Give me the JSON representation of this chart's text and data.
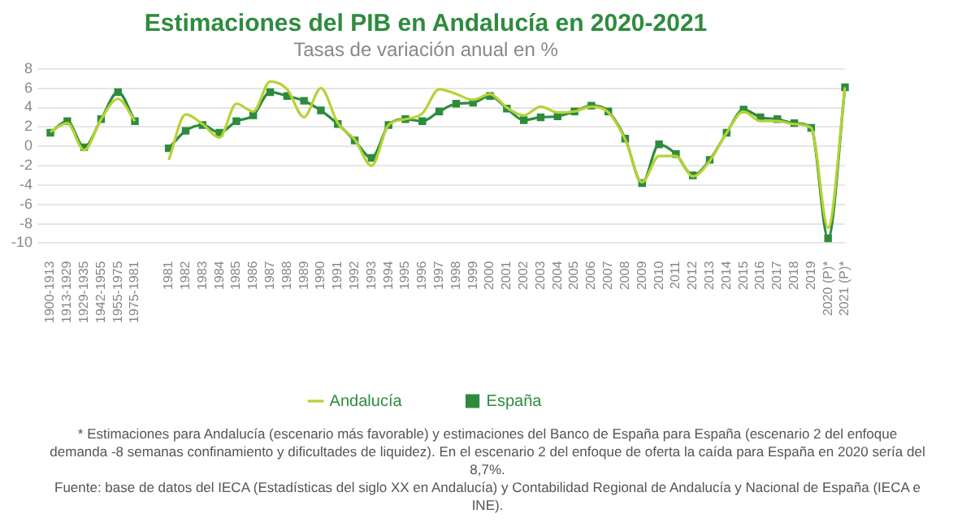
{
  "chart_data": {
    "type": "line",
    "title": "Estimaciones del PIB en Andalucía en 2020-2021",
    "subtitle": "Tasas de variación anual en %",
    "categories": [
      "1900-1913",
      "1913-1929",
      "1929-1935",
      "1942-1955",
      "1955-1975",
      "1975-1981",
      null,
      "1981",
      "1982",
      "1983",
      "1984",
      "1985",
      "1986",
      "1987",
      "1988",
      "1989",
      "1990",
      "1991",
      "1992",
      "1993",
      "1994",
      "1995",
      "1996",
      "1997",
      "1998",
      "1999",
      "2000",
      "2001",
      "2002",
      "2003",
      "2004",
      "2005",
      "2006",
      "2007",
      "2008",
      "2009",
      "2010",
      "2011",
      "2012",
      "2013",
      "2014",
      "2015",
      "2016",
      "2017",
      "2018",
      "2019",
      "2020 (P)*",
      "2021 (P)*"
    ],
    "series": [
      {
        "name": "Andalucía",
        "color": "#b5d334",
        "marker": "none",
        "values": [
          1.5,
          2.4,
          -0.4,
          2.8,
          4.9,
          2.6,
          null,
          -1.4,
          3.3,
          2.3,
          0.9,
          4.4,
          3.6,
          6.7,
          5.9,
          3.0,
          6.0,
          2.4,
          0.7,
          -2.0,
          2.2,
          2.8,
          3.4,
          5.9,
          5.4,
          4.8,
          5.4,
          4.0,
          3.2,
          4.1,
          3.5,
          3.6,
          4.1,
          3.5,
          0.7,
          -3.7,
          -1.0,
          -1.0,
          -3.1,
          -1.5,
          1.4,
          3.6,
          2.6,
          2.6,
          2.3,
          1.9,
          -8.4,
          6.1
        ]
      },
      {
        "name": "España",
        "color": "#2e8b3e",
        "marker": "square",
        "values": [
          1.4,
          2.6,
          -0.1,
          2.8,
          5.6,
          2.6,
          null,
          -0.2,
          1.6,
          2.2,
          1.4,
          2.6,
          3.2,
          5.6,
          5.2,
          4.7,
          3.7,
          2.3,
          0.6,
          -1.2,
          2.2,
          2.8,
          2.6,
          3.6,
          4.4,
          4.5,
          5.2,
          3.9,
          2.7,
          3.0,
          3.1,
          3.6,
          4.2,
          3.6,
          0.8,
          -3.8,
          0.2,
          -0.8,
          -3.0,
          -1.4,
          1.4,
          3.8,
          3.0,
          2.8,
          2.4,
          1.9,
          -9.5,
          6.1
        ]
      }
    ],
    "ylim": [
      -10,
      8
    ],
    "yticks": [
      -10,
      -8,
      -6,
      -4,
      -2,
      0,
      2,
      4,
      6,
      8
    ],
    "grid": "y",
    "legend": "bottom",
    "annotations": [
      "* Estimaciones para Andalucía (escenario más favorable) y estimaciones del Banco de España para España (escenario 2 del enfoque demanda -8 semanas confinamiento y dificultades de liquidez). En el escenario 2 del enfoque de oferta la caída para España en 2020 sería del 8,7%.",
      "Fuente: base de datos del IECA (Estadísticas del siglo XX en Andalucía) y Contabilidad Regional de Andalucía y Nacional de España (IECA e INE)."
    ]
  }
}
